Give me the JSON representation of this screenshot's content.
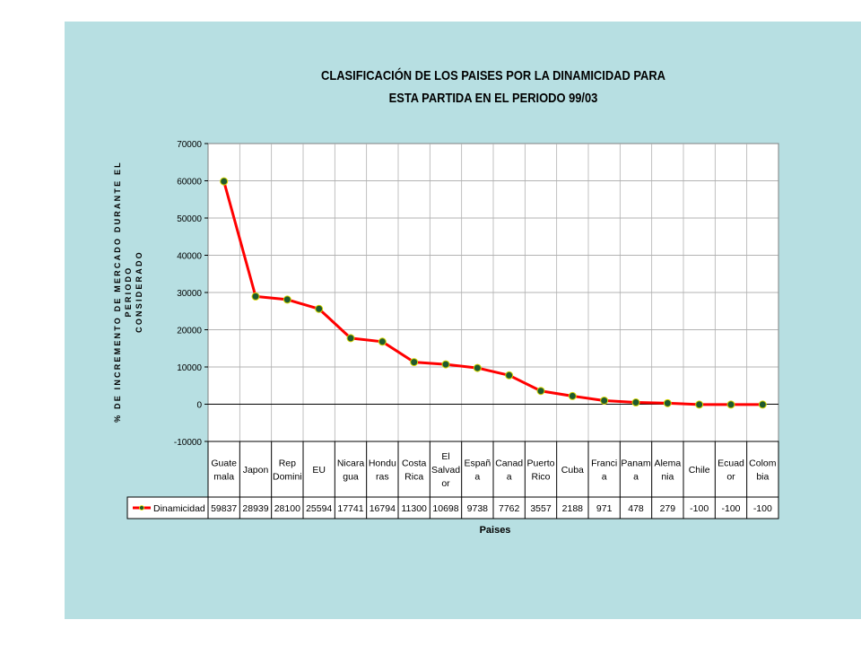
{
  "chart_data": {
    "type": "line",
    "title_line1": "CLASIFICACIÓN DE LOS PAISES POR LA DINAMICIDAD PARA",
    "title_line2": "ESTA PARTIDA EN EL PERIODO 99/03",
    "ylabel": "% DE INCREMENTO DE MERCADO DURANTE EL PERIODO\nCONSIDERADO",
    "xlabel": "Paises",
    "ylim": [
      -10000,
      70000
    ],
    "yticks": [
      "70000",
      "60000",
      "50000",
      "40000",
      "30000",
      "20000",
      "10000",
      "0",
      "-10000"
    ],
    "grid": true,
    "legend": "data-table",
    "categories": [
      [
        "Guate",
        "mala"
      ],
      [
        "Japon"
      ],
      [
        "Rep",
        "Domini"
      ],
      [
        "EU"
      ],
      [
        "Nicara",
        "gua"
      ],
      [
        "Hondu",
        "ras"
      ],
      [
        "Costa",
        "Rica"
      ],
      [
        "El",
        "Salvad",
        "or"
      ],
      [
        "Españ",
        "a"
      ],
      [
        "Canad",
        "a"
      ],
      [
        "Puerto",
        "Rico"
      ],
      [
        "Cuba"
      ],
      [
        "Franci",
        "a"
      ],
      [
        "Panam",
        "a"
      ],
      [
        "Alema",
        "nia"
      ],
      [
        "Chile"
      ],
      [
        "Ecuad",
        "or"
      ],
      [
        "Colom",
        "bia"
      ]
    ],
    "series": [
      {
        "name": "Dinamicidad",
        "values": [
          59837,
          28939,
          28100,
          25594,
          17741,
          16794,
          11300,
          10698,
          9738,
          7762,
          3557,
          2188,
          971,
          478,
          279,
          -100,
          -100,
          -100
        ],
        "labels": [
          "59837",
          "28939",
          "28100",
          "25594",
          "17741",
          "16794",
          "11300",
          "10698",
          "9738",
          "7762",
          "3557",
          "2188",
          "971",
          "478",
          "279",
          "-100",
          "-100",
          "-100"
        ],
        "line_color": "#ff0000",
        "marker_color": "#1f5a2e"
      }
    ]
  }
}
